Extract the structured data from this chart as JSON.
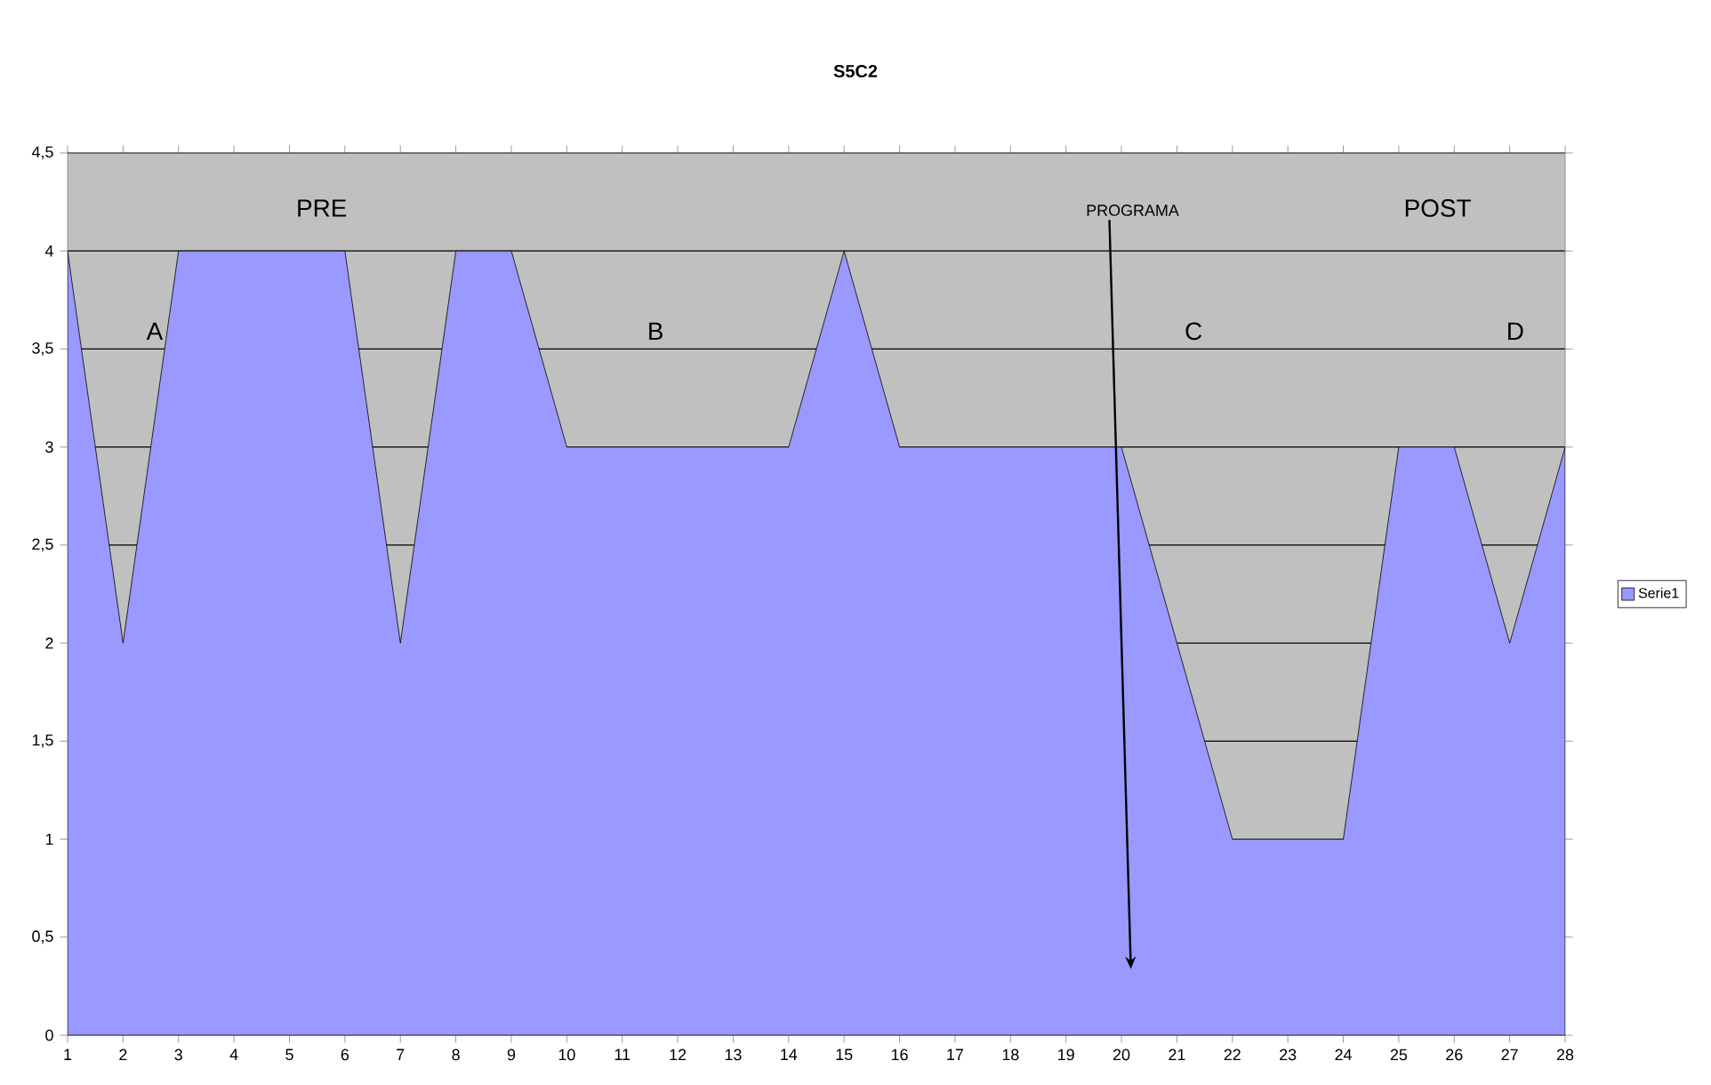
{
  "chart_data": {
    "type": "area",
    "title": "S5C2",
    "categories": [
      "1",
      "2",
      "3",
      "4",
      "5",
      "6",
      "7",
      "8",
      "9",
      "10",
      "11",
      "12",
      "13",
      "14",
      "15",
      "16",
      "17",
      "18",
      "19",
      "20",
      "21",
      "22",
      "23",
      "24",
      "25",
      "26",
      "27",
      "28"
    ],
    "series": [
      {
        "name": "Serie1",
        "color": "#9999ff",
        "values": [
          4,
          2,
          4,
          4,
          4,
          4,
          2,
          4,
          4,
          3,
          3,
          3,
          3,
          3,
          4,
          3,
          3,
          3,
          3,
          3,
          2,
          1,
          1,
          1,
          3,
          3,
          2,
          3
        ]
      }
    ],
    "ylim": [
      0,
      4.5
    ],
    "yticks": [
      0,
      {
        "value": 0.5,
        "label": "0,5"
      },
      1,
      {
        "value": 1.5,
        "label": "1,5"
      },
      2,
      {
        "value": 2.5,
        "label": "2,5"
      },
      3,
      {
        "value": 3.5,
        "label": "3,5"
      },
      4,
      {
        "value": 4.5,
        "label": "4,5"
      }
    ],
    "grid": "y",
    "legend": "right",
    "annotations": [
      "PRE",
      "POST",
      "PROGRAMA",
      "A",
      "B",
      "C",
      "D"
    ]
  }
}
